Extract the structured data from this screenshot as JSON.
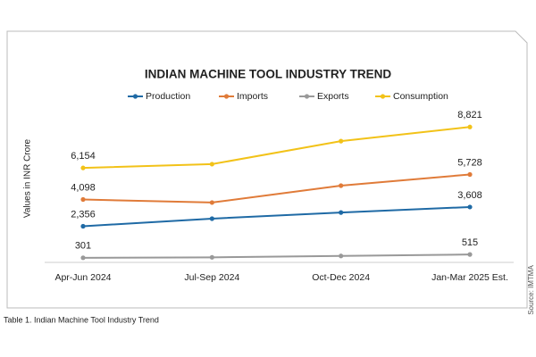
{
  "chart_data": {
    "type": "line",
    "title": "INDIAN MACHINE TOOL INDUSTRY TREND",
    "y_label": "Values in INR Crore",
    "caption": "Table 1. Indian Machine Tool Industry Trend",
    "source": "Source: IMTMA",
    "categories": [
      "Apr-Jun 2024",
      "Jul-Sep 2024",
      "Oct-Dec 2024",
      "Jan-Mar 2025 Est."
    ],
    "ylim": [
      0,
      10000
    ],
    "legend": "top",
    "series": [
      {
        "name": "Production",
        "color": "#1f6aa5",
        "values": [
          2356,
          2850,
          3250,
          3608
        ],
        "value_labels": [
          "2,356",
          null,
          null,
          "3,608"
        ]
      },
      {
        "name": "Imports",
        "color": "#e07b39",
        "values": [
          4098,
          3900,
          5000,
          5728
        ],
        "value_labels": [
          "4,098",
          null,
          null,
          "5,728"
        ]
      },
      {
        "name": "Exports",
        "color": "#999999",
        "values": [
          301,
          330,
          420,
          515
        ],
        "value_labels": [
          "301",
          null,
          null,
          "515"
        ]
      },
      {
        "name": "Consumption",
        "color": "#f2c218",
        "values": [
          6154,
          6400,
          7900,
          8821
        ],
        "value_labels": [
          "6,154",
          null,
          null,
          "8,821"
        ]
      }
    ]
  }
}
